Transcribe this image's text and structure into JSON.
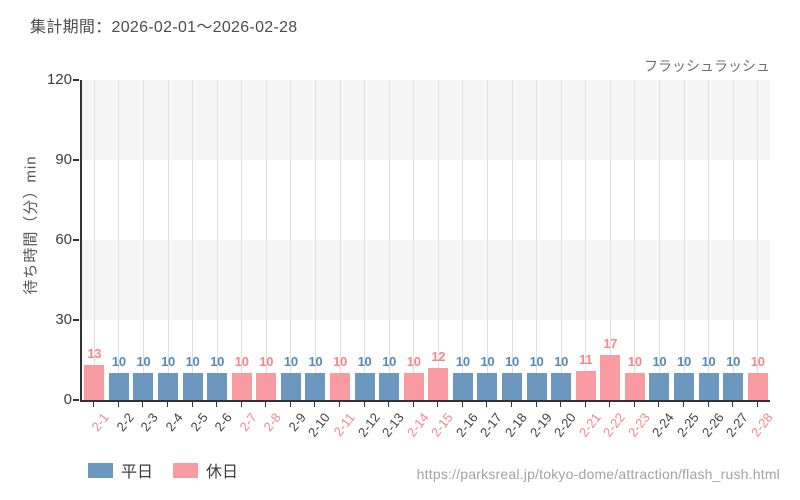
{
  "header": {
    "period_label": "集計期間：2026-02-01〜2026-02-28"
  },
  "colors": {
    "weekday_bar": "#6c97be",
    "holiday_bar": "#f99ba0",
    "weekday_text": "#568bb7",
    "holiday_text": "#f9858c",
    "xlabel_weekday": "#434343",
    "axis": "#333333",
    "grid_line": "#e0e0e0",
    "band": "#f5f5f5",
    "ytick_text": "#3d3d3d"
  },
  "legend": {
    "items": [
      {
        "label": "平日",
        "key": "weekday_bar"
      },
      {
        "label": "休日",
        "key": "holiday_bar"
      }
    ]
  },
  "footer": {
    "source_url": "https://parksreal.jp/tokyo-dome/attraction/flash_rush.html"
  },
  "chart_data": {
    "type": "bar",
    "title": "フラッシュラッシュ",
    "xlabel": "",
    "ylabel": "待ち時間（分）min",
    "ylim": [
      0,
      120
    ],
    "yticks": [
      0,
      30,
      60,
      90,
      120
    ],
    "grid": true,
    "legend_position": "bottom-left",
    "categories": [
      "2-1",
      "2-2",
      "2-3",
      "2-4",
      "2-5",
      "2-6",
      "2-7",
      "2-8",
      "2-9",
      "2-10",
      "2-11",
      "2-12",
      "2-13",
      "2-14",
      "2-15",
      "2-16",
      "2-17",
      "2-18",
      "2-19",
      "2-20",
      "2-21",
      "2-22",
      "2-23",
      "2-24",
      "2-25",
      "2-26",
      "2-27",
      "2-28"
    ],
    "values": [
      13,
      10,
      10,
      10,
      10,
      10,
      10,
      10,
      10,
      10,
      10,
      10,
      10,
      10,
      12,
      10,
      10,
      10,
      10,
      10,
      11,
      17,
      10,
      10,
      10,
      10,
      10,
      10
    ],
    "day_types": [
      "holiday",
      "weekday",
      "weekday",
      "weekday",
      "weekday",
      "weekday",
      "holiday",
      "holiday",
      "weekday",
      "weekday",
      "holiday",
      "weekday",
      "weekday",
      "holiday",
      "holiday",
      "weekday",
      "weekday",
      "weekday",
      "weekday",
      "weekday",
      "holiday",
      "holiday",
      "holiday",
      "weekday",
      "weekday",
      "weekday",
      "weekday",
      "holiday"
    ],
    "series": [
      {
        "name": "平日",
        "color": "#6c97be"
      },
      {
        "name": "休日",
        "color": "#f99ba0"
      }
    ]
  }
}
